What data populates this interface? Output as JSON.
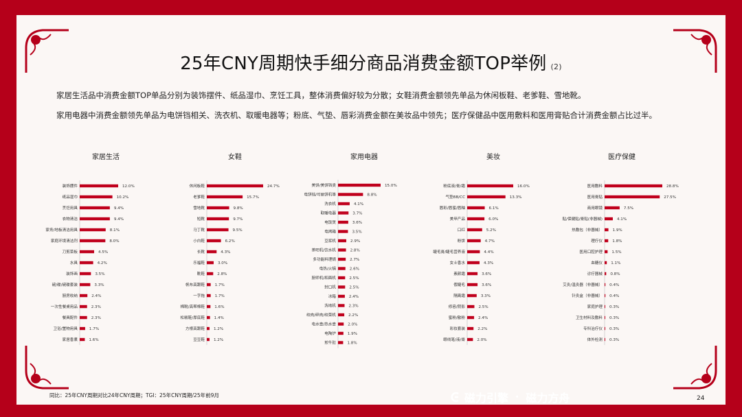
{
  "header": {
    "title": "25年CNY周期快手细分商品消费金额TOP举例",
    "title_sub": "(2)"
  },
  "description": {
    "line1": "家居生活品中消费金额TOP单品分别为装饰摆件、纸品湿巾、烹饪工具，整体消费偏好较为分散；女鞋消费金额领先单品为休闲板鞋、老爹鞋、雪地靴。",
    "line2": "家用电器中消费金额领先单品为电饼铛相关、洗衣机、取暖电器等；粉底、气垫、唇彩消费金额在美妆品中领先；医疗保健品中医用敷料和医用膏贴合计消费金额占比过半。"
  },
  "footer": {
    "note": "同比：25年CNY周期对比24年CNY周期；TGI：25年CNY周期/25年前9月",
    "page": "24",
    "brand1": "磁力引擎",
    "separator": "·",
    "brand2": "磁力方舟"
  },
  "colors": {
    "frame": "#b5001a",
    "bar": "#c0001c",
    "panel": "#fbf7f5"
  },
  "chart_data": [
    {
      "type": "bar",
      "title": "家居生活",
      "categories": [
        "装饰摆件",
        "纸品湿巾",
        "烹饪用具",
        "衣物清洁",
        "家务/地板清洁用具",
        "家庭环境清洁剂",
        "刀剪菜板",
        "水具",
        "装饰画",
        "碗/碟/碗碟套装",
        "厨房收纳",
        "一次性餐桌用品",
        "餐具配件",
        "卫浴/置物用具",
        "家居香薰"
      ],
      "values": [
        12.0,
        10.2,
        9.4,
        9.4,
        8.1,
        8.0,
        4.5,
        4.2,
        3.5,
        3.3,
        2.4,
        2.3,
        2.3,
        1.7,
        1.6
      ],
      "labels": [
        "12.0%",
        "10.2%",
        "9.4%",
        "9.4%",
        "8.1%",
        "8.0%",
        "4.5%",
        "4.2%",
        "3.5%",
        "3.3%",
        "2.4%",
        "2.3%",
        "2.3%",
        "1.7%",
        "1.6%"
      ]
    },
    {
      "type": "bar",
      "title": "女鞋",
      "categories": [
        "休闲板鞋",
        "老爹鞋",
        "雪地靴",
        "短靴",
        "马丁靴",
        "小白鞋",
        "长靴",
        "乐福鞋",
        "靴鞋",
        "帆布高跟鞋",
        "一字拖",
        "棉靴/高帮棉鞋",
        "松糕鞋/厚底鞋",
        "方根高跟鞋",
        "豆豆鞋"
      ],
      "values": [
        24.7,
        15.7,
        9.8,
        9.7,
        9.5,
        6.2,
        4.3,
        3.0,
        2.8,
        1.7,
        1.7,
        1.6,
        1.4,
        1.2,
        1.2
      ],
      "labels": [
        "24.7%",
        "15.7%",
        "9.8%",
        "9.7%",
        "9.5%",
        "6.2%",
        "4.3%",
        "3.0%",
        "2.8%",
        "1.7%",
        "1.7%",
        "1.6%",
        "1.4%",
        "1.2%",
        "1.2%"
      ]
    },
    {
      "type": "bar",
      "title": "家用电器",
      "categories": [
        "美饼/美饼铛类",
        "电饼铛/可丽饼机等",
        "洗衣机",
        "取暖电器",
        "电饭煲",
        "电烤箱",
        "豆浆机",
        "茶吧机/饮水机",
        "多功能料理锅",
        "电热/火锅",
        "厨师机/和面机",
        "封口机",
        "冰箱",
        "洗地机",
        "绞肉/碎肉/绞菜机",
        "电水壶/热水壶",
        "电陶炉",
        "煎牛肚"
      ],
      "values": [
        15.0,
        8.8,
        4.1,
        3.7,
        3.6,
        3.5,
        2.9,
        2.8,
        2.7,
        2.6,
        2.5,
        2.5,
        2.4,
        2.3,
        2.2,
        2.0,
        1.9,
        1.8
      ],
      "labels": [
        "15.0%",
        "8.8%",
        "4.1%",
        "3.7%",
        "3.6%",
        "3.5%",
        "2.9%",
        "2.8%",
        "2.7%",
        "2.6%",
        "2.5%",
        "2.5%",
        "2.4%",
        "2.3%",
        "2.2%",
        "2.0%",
        "1.9%",
        "1.8%"
      ]
    },
    {
      "type": "bar",
      "title": "美妆",
      "categories": [
        "粉底液/膏/霜",
        "气垫BB/CC",
        "唇彩/唇蜜/唇釉",
        "美甲产品",
        "口红",
        "粉饼",
        "睫毛膏/睫毛营养液",
        "女士香水",
        "素颜霜",
        "假睫毛",
        "隔离霜",
        "修容/阴影",
        "蜜粉/散粉",
        "彩妆套装",
        "眼线笔/液/膏"
      ],
      "values": [
        16.0,
        13.3,
        6.1,
        6.0,
        5.2,
        4.7,
        4.4,
        4.3,
        3.6,
        3.6,
        3.3,
        2.5,
        2.4,
        2.2,
        2.0
      ],
      "labels": [
        "16.0%",
        "13.3%",
        "6.1%",
        "6.0%",
        "5.2%",
        "4.7%",
        "4.4%",
        "4.3%",
        "3.6%",
        "3.6%",
        "3.3%",
        "2.5%",
        "2.4%",
        "2.2%",
        "2.0%"
      ]
    },
    {
      "type": "bar",
      "title": "医疗保健",
      "categories": [
        "医用敷料",
        "医用膏贴",
        "商用眼镜",
        "贴/保健贴/膏贴(非器械)",
        "热敷包（非器械）",
        "理疗仪",
        "医用口腔护理",
        "血糖仪",
        "诊疗器械",
        "艾灸/温灸器（非器械）",
        "针灸盒（非器械）",
        "家庭护理",
        "卫生材料及敷料",
        "专科治疗仪",
        "体外检测"
      ],
      "values": [
        28.8,
        27.5,
        7.5,
        4.1,
        1.9,
        1.8,
        1.5,
        1.1,
        0.8,
        0.4,
        0.4,
        0.3,
        0.3,
        0.3,
        0.3
      ],
      "labels": [
        "28.8%",
        "27.5%",
        "7.5%",
        "4.1%",
        "1.9%",
        "1.8%",
        "1.5%",
        "1.1%",
        "0.8%",
        "0.4%",
        "0.4%",
        "0.3%",
        "0.3%",
        "0.3%",
        "0.3%"
      ]
    }
  ]
}
